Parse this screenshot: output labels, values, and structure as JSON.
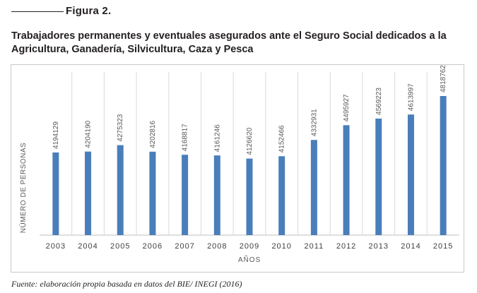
{
  "figure_label": "Figura 2.",
  "title": "Trabajadores permanentes y eventuales asegurados ante el Seguro Social dedicados a la Agricultura, Ganadería, Silvicultura, Caza y Pesca",
  "source": "Fuente: elaboración propia basada en datos del BIE/ INEGI (2016)",
  "colors": {
    "bar": "#4a7ebb",
    "grid": "#dadada",
    "axis": "#bfbfbf",
    "text": "#595959"
  },
  "chart_data": {
    "type": "bar",
    "xlabel": "AÑOS",
    "ylabel": "NÚMERO DE PERSONAS",
    "categories": [
      "2003",
      "2004",
      "2005",
      "2006",
      "2007",
      "2008",
      "2009",
      "2010",
      "2011",
      "2012",
      "2013",
      "2014",
      "2015"
    ],
    "values": [
      4194129,
      4204190,
      4275323,
      4202816,
      4168817,
      4161246,
      4126620,
      4152466,
      4332931,
      4495927,
      4569223,
      4613997,
      4818762
    ],
    "data_labels": [
      "4194129",
      "4204190",
      "4275323",
      "4202816",
      "4168817",
      "4161246",
      "4126620",
      "4152466",
      "4332931",
      "4495927",
      "4569223",
      "4613997",
      "4818762"
    ],
    "grid": "vertical",
    "legend": "none"
  }
}
